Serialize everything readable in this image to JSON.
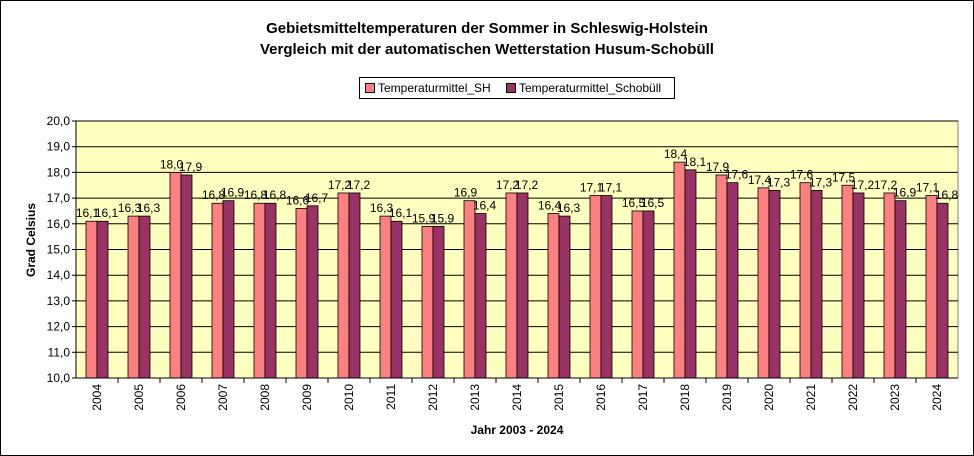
{
  "chart_data": {
    "type": "bar",
    "title": "Gebietsmitteltemperaturen der Sommer in Schleswig-Holstein",
    "subtitle": "Vergleich mit der automatischen Wetterstation Husum-Schobüll",
    "xlabel": "Jahr 2003 - 2024",
    "ylabel": "Grad Celsius",
    "ylim": [
      10.0,
      20.0
    ],
    "yticks": [
      "10,0",
      "11,0",
      "12,0",
      "13,0",
      "14,0",
      "15,0",
      "16,0",
      "17,0",
      "18,0",
      "19,0",
      "20,0"
    ],
    "grid": true,
    "legend_position": "top",
    "categories": [
      "2004",
      "2005",
      "2006",
      "2007",
      "2008",
      "2009",
      "2010",
      "2011",
      "2012",
      "2013",
      "2014",
      "2015",
      "2016",
      "2017",
      "2018",
      "2019",
      "2020",
      "2021",
      "2022",
      "2023",
      "2024"
    ],
    "series": [
      {
        "name": "Temperaturmittel_SH",
        "color": "#FF8080",
        "values": [
          16.1,
          16.3,
          18.0,
          16.8,
          16.8,
          16.6,
          17.2,
          16.3,
          15.9,
          16.9,
          17.2,
          16.4,
          17.1,
          16.5,
          18.4,
          17.9,
          17.4,
          17.6,
          17.5,
          17.2,
          17.1
        ],
        "labels": [
          "16,1",
          "16,3",
          "18,0",
          "16,8",
          "16,8",
          "16,6",
          "17,2",
          "16,3",
          "15,9",
          "16,9",
          "17,2",
          "16,4",
          "17,1",
          "16,5",
          "18,4",
          "17,9",
          "17,4",
          "17,6",
          "17,5",
          "17,2",
          "17,1"
        ]
      },
      {
        "name": "Temperaturmittel_Schobüll",
        "color": "#993366",
        "values": [
          16.1,
          16.3,
          17.9,
          16.9,
          16.8,
          16.7,
          17.2,
          16.1,
          15.9,
          16.4,
          17.2,
          16.3,
          17.1,
          16.5,
          18.1,
          17.6,
          17.3,
          17.3,
          17.2,
          16.9,
          16.8
        ],
        "labels": [
          "16,1",
          "16,3",
          "17,9",
          "16,9",
          "16,8",
          "16,7",
          "17,2",
          "16,1",
          "15,9",
          "16,4",
          "17,2",
          "16,3",
          "17,1",
          "16,5",
          "18,1",
          "17,6",
          "17,3",
          "17,3",
          "17,2",
          "16,9",
          "16,8"
        ]
      }
    ],
    "plot_background": "#FFFFC0"
  }
}
